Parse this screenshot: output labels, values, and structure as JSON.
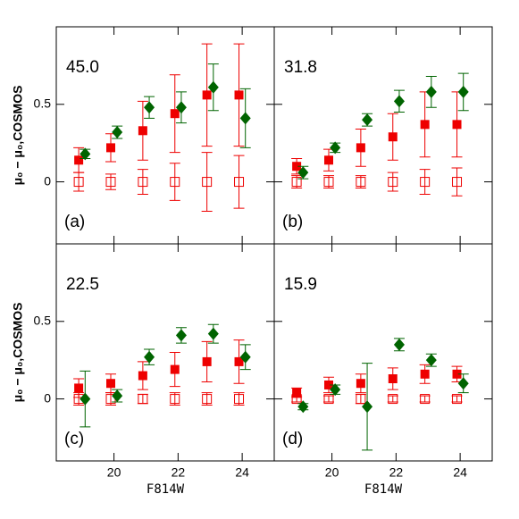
{
  "chart_data": [
    {
      "type": "scatter",
      "annotation": "45.0",
      "panel_label": "(a)",
      "ylabel": "μ₀ − μ₀,COSMOS",
      "xlim": [
        18.2,
        25.0
      ],
      "ylim": [
        -0.4,
        1.0
      ],
      "xticks": [
        20,
        22,
        24
      ],
      "yticks": [
        0,
        0.5
      ],
      "series": [
        {
          "marker": "filled-square",
          "color": "#ee0000",
          "x": [
            18.9,
            19.9,
            20.9,
            21.9,
            22.9,
            23.9
          ],
          "values": [
            0.14,
            0.22,
            0.33,
            0.44,
            0.56,
            0.56
          ],
          "errors": [
            0.08,
            0.09,
            0.19,
            0.25,
            0.33,
            0.33
          ]
        },
        {
          "marker": "open-square",
          "color": "#ee0000",
          "x": [
            18.9,
            19.9,
            20.9,
            21.9,
            22.9,
            23.9
          ],
          "values": [
            0,
            0,
            0,
            0,
            0,
            0
          ],
          "errors": [
            0.06,
            0.05,
            0.08,
            0.12,
            0.19,
            0.17
          ]
        },
        {
          "marker": "diamond",
          "color": "#006400",
          "x": [
            19.1,
            20.1,
            21.1,
            22.1,
            23.1,
            24.1
          ],
          "values": [
            0.18,
            0.32,
            0.48,
            0.48,
            0.61,
            0.41
          ],
          "errors": [
            0.03,
            0.04,
            0.07,
            0.1,
            0.15,
            0.19
          ]
        }
      ]
    },
    {
      "type": "scatter",
      "annotation": "31.8",
      "panel_label": "(b)",
      "xlim": [
        18.2,
        25.0
      ],
      "ylim": [
        -0.4,
        1.0
      ],
      "xticks": [
        20,
        22,
        24
      ],
      "yticks": [
        0,
        0.5
      ],
      "series": [
        {
          "marker": "filled-square",
          "color": "#ee0000",
          "x": [
            18.9,
            19.9,
            20.9,
            21.9,
            22.9,
            23.9
          ],
          "values": [
            0.1,
            0.14,
            0.22,
            0.29,
            0.37,
            0.37
          ],
          "errors": [
            0.05,
            0.07,
            0.12,
            0.15,
            0.21,
            0.21
          ]
        },
        {
          "marker": "open-square",
          "color": "#ee0000",
          "x": [
            18.9,
            19.9,
            20.9,
            21.9,
            22.9,
            23.9
          ],
          "values": [
            0,
            0,
            0,
            0,
            0,
            0
          ],
          "errors": [
            0.04,
            0.04,
            0.04,
            0.06,
            0.08,
            0.09
          ]
        },
        {
          "marker": "diamond",
          "color": "#006400",
          "x": [
            19.1,
            20.1,
            21.1,
            22.1,
            23.1,
            24.1
          ],
          "values": [
            0.06,
            0.22,
            0.4,
            0.52,
            0.58,
            0.58
          ],
          "errors": [
            0.04,
            0.03,
            0.04,
            0.07,
            0.1,
            0.12
          ]
        }
      ]
    },
    {
      "type": "scatter",
      "annotation": "22.5",
      "panel_label": "(c)",
      "ylabel": "μ₀ − μ₀,COSMOS",
      "xlabel": "F814W",
      "xlim": [
        18.2,
        25.0
      ],
      "ylim": [
        -0.4,
        1.0
      ],
      "xticks": [
        20,
        22,
        24
      ],
      "yticks": [
        0,
        0.5
      ],
      "series": [
        {
          "marker": "filled-square",
          "color": "#ee0000",
          "x": [
            18.9,
            19.9,
            20.9,
            21.9,
            22.9,
            23.9
          ],
          "values": [
            0.07,
            0.1,
            0.15,
            0.19,
            0.24,
            0.24
          ],
          "errors": [
            0.06,
            0.06,
            0.09,
            0.11,
            0.13,
            0.14
          ]
        },
        {
          "marker": "open-square",
          "color": "#ee0000",
          "x": [
            18.9,
            19.9,
            20.9,
            21.9,
            22.9,
            23.9
          ],
          "values": [
            0,
            0,
            0,
            0,
            0,
            0
          ],
          "errors": [
            0.04,
            0.04,
            0.03,
            0.04,
            0.04,
            0.04
          ]
        },
        {
          "marker": "diamond",
          "color": "#006400",
          "x": [
            19.1,
            20.1,
            21.1,
            22.1,
            23.1,
            24.1
          ],
          "values": [
            0,
            0.02,
            0.27,
            0.41,
            0.42,
            0.27
          ],
          "errors": [
            0.18,
            0.04,
            0.05,
            0.05,
            0.06,
            0.08
          ]
        }
      ]
    },
    {
      "type": "scatter",
      "annotation": "15.9",
      "panel_label": "(d)",
      "xlabel": "F814W",
      "xlim": [
        18.2,
        25.0
      ],
      "ylim": [
        -0.4,
        1.0
      ],
      "xticks": [
        20,
        22,
        24
      ],
      "yticks": [
        0,
        0.5
      ],
      "series": [
        {
          "marker": "filled-square",
          "color": "#ee0000",
          "x": [
            18.9,
            19.9,
            20.9,
            21.9,
            22.9,
            23.9
          ],
          "values": [
            0.04,
            0.09,
            0.1,
            0.13,
            0.16,
            0.16
          ],
          "errors": [
            0.03,
            0.05,
            0.06,
            0.07,
            0.06,
            0.05
          ]
        },
        {
          "marker": "open-square",
          "color": "#ee0000",
          "x": [
            18.9,
            19.9,
            20.9,
            21.9,
            22.9,
            23.9
          ],
          "values": [
            0,
            0,
            0,
            0,
            0,
            0
          ],
          "errors": [
            0.02,
            0.02,
            0.03,
            0.02,
            0.02,
            0.02
          ]
        },
        {
          "marker": "diamond",
          "color": "#006400",
          "x": [
            19.1,
            20.1,
            21.1,
            22.1,
            23.1,
            24.1
          ],
          "values": [
            -0.05,
            0.06,
            -0.05,
            0.35,
            0.25,
            0.1
          ],
          "errors": [
            0.02,
            0.03,
            0.28,
            0.04,
            0.04,
            0.06
          ]
        }
      ]
    }
  ]
}
